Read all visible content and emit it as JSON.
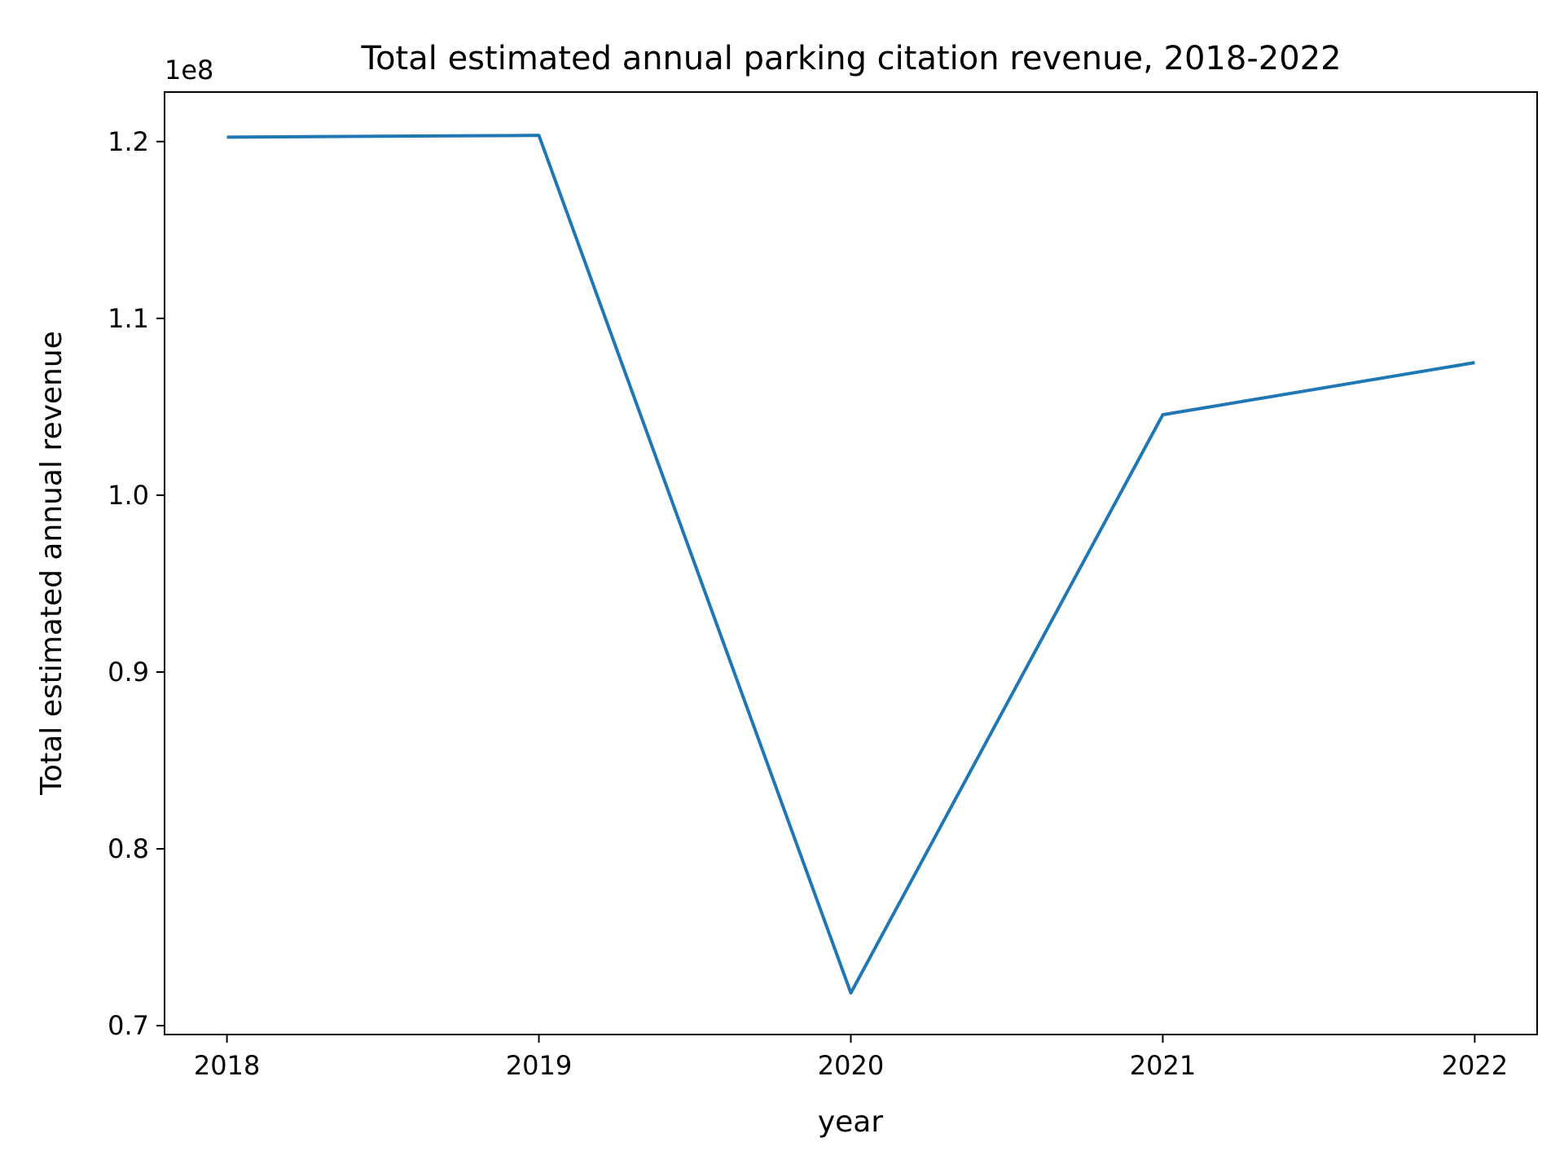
{
  "chart_data": {
    "type": "line",
    "title": "Total estimated annual parking citation revenue, 2018-2022",
    "xlabel": "year",
    "ylabel": "Total estimated annual revenue",
    "y_offset_label": "1e8",
    "x": [
      2018,
      2019,
      2020,
      2021,
      2022
    ],
    "x_tick_labels": [
      "2018",
      "2019",
      "2020",
      "2021",
      "2022"
    ],
    "y_ticks": [
      0.7,
      0.8,
      0.9,
      1.0,
      1.1,
      1.2
    ],
    "y_tick_labels": [
      "0.7",
      "0.8",
      "0.9",
      "1.0",
      "1.1",
      "1.2"
    ],
    "xlim": [
      2017.8,
      2022.2
    ],
    "ylim": [
      0.695,
      1.228
    ],
    "y_scale_factor": 100000000,
    "series": [
      {
        "values": [
          1.2025,
          1.2035,
          0.7185,
          1.0455,
          1.075
        ],
        "color": "#1f77b4"
      }
    ],
    "grid": false,
    "legend": "none"
  }
}
